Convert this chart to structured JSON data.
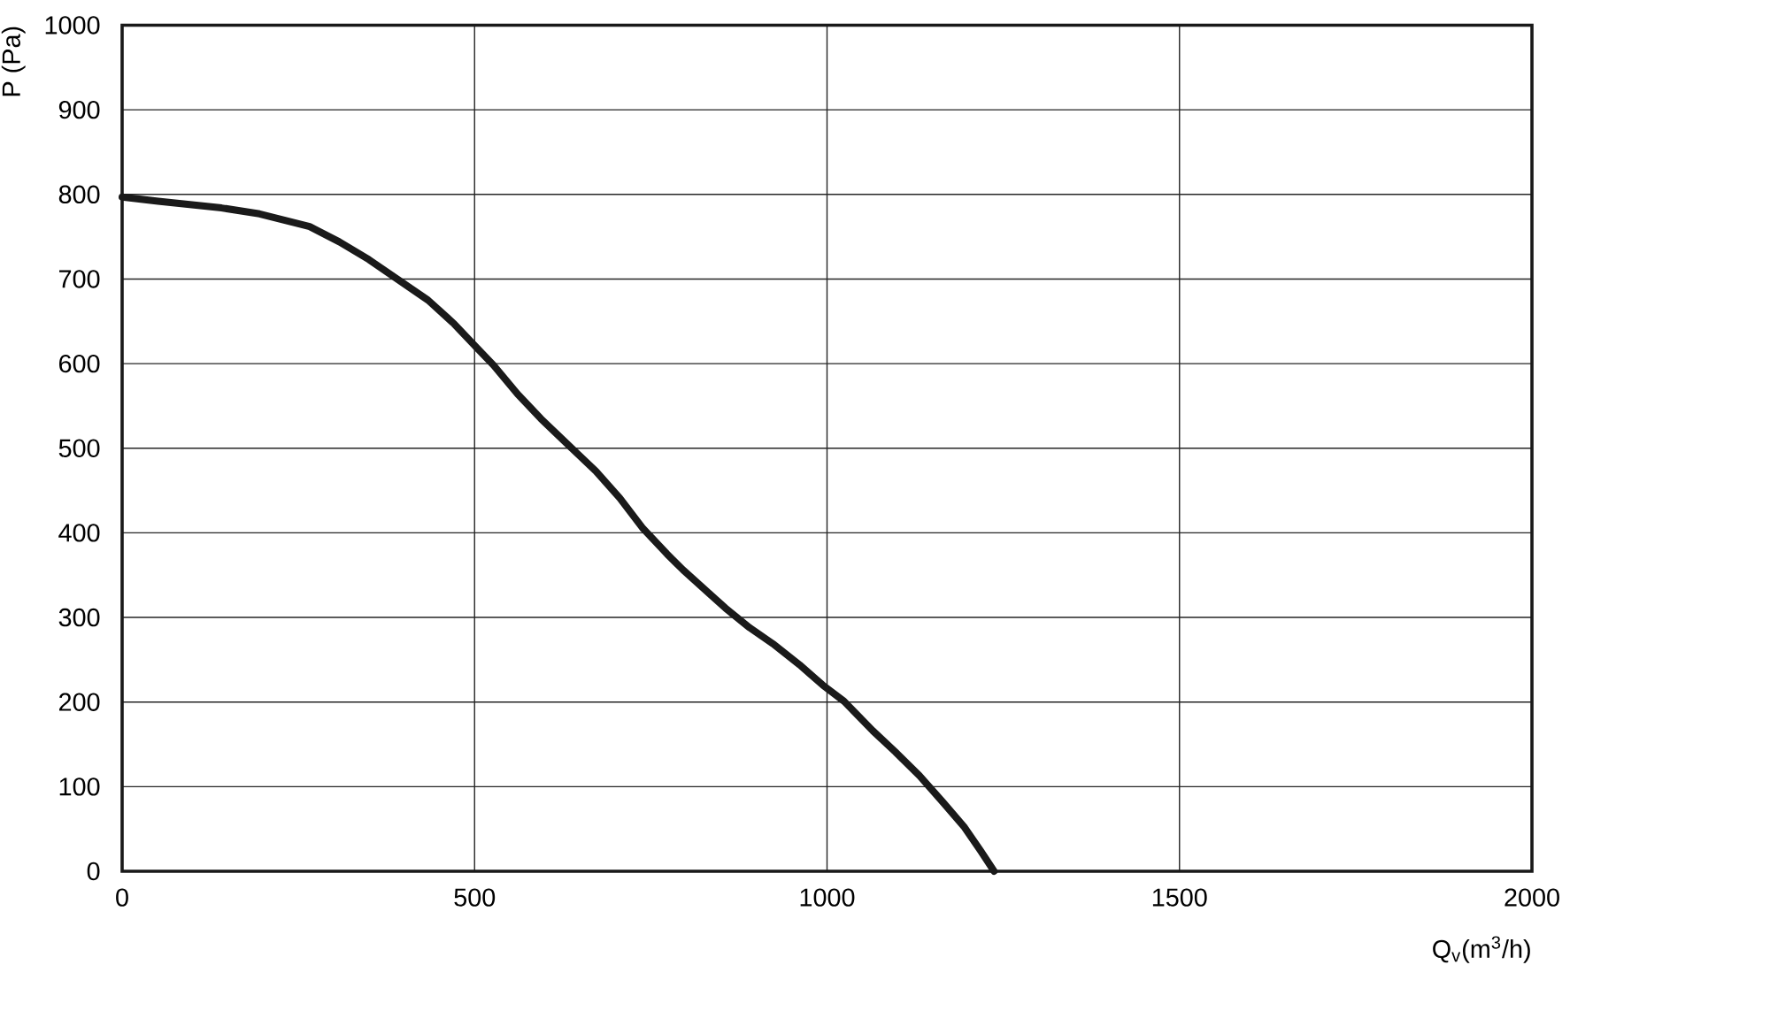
{
  "chart_data": {
    "type": "line",
    "xlabel": "Q$_{v}$(m$^{3}$/h)",
    "ylabel": "P (Pa)",
    "x": [
      0,
      51,
      141,
      195,
      266,
      308,
      350,
      392,
      434,
      471,
      505,
      527,
      561,
      594,
      639,
      672,
      706,
      739,
      773,
      796,
      836,
      856,
      890,
      923,
      961,
      994,
      1024,
      1065,
      1097,
      1131,
      1165,
      1194,
      1218,
      1237
    ],
    "series": [
      {
        "color": "#1a1a1a",
        "values": [
          797,
          792,
          784,
          777,
          762,
          744,
          723,
          699,
          675,
          647,
          617,
          598,
          564,
          535,
          499,
          473,
          441,
          405,
          375,
          356,
          326,
          311,
          288,
          269,
          244,
          220,
          201,
          166,
          141,
          113,
          81,
          53,
          24,
          0
        ]
      }
    ],
    "xlim": [
      0,
      2000
    ],
    "ylim": [
      0,
      1000
    ],
    "xticks": [
      0,
      500,
      1000,
      1500,
      2000
    ],
    "yticks": [
      0,
      100,
      200,
      300,
      400,
      500,
      600,
      700,
      800,
      900,
      1000
    ],
    "grid": true,
    "marker": "none",
    "line_style": "solid"
  }
}
